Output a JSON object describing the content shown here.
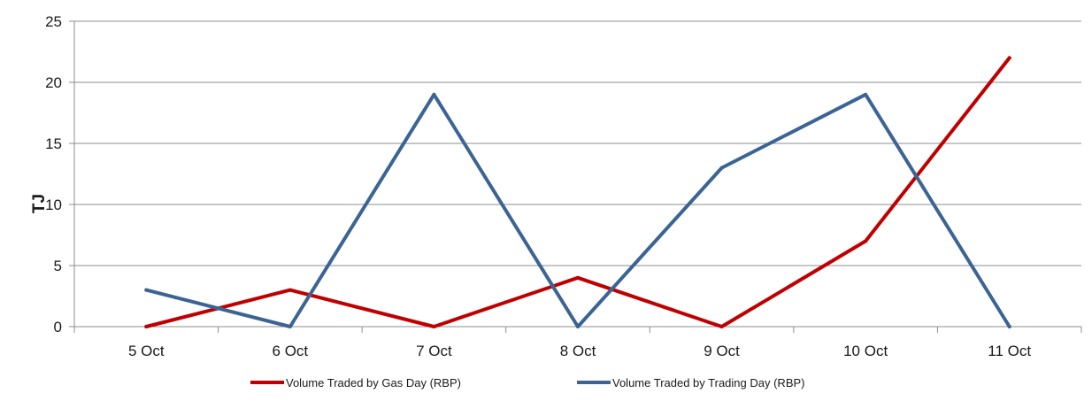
{
  "chart_data": {
    "type": "line",
    "title": "",
    "xlabel": "",
    "ylabel": "TJ",
    "ylim": [
      0,
      25
    ],
    "yticks": [
      0,
      5,
      10,
      15,
      20,
      25
    ],
    "grid": "horizontal",
    "legend_position": "bottom",
    "categories": [
      "5 Oct",
      "6 Oct",
      "7 Oct",
      "8 Oct",
      "9 Oct",
      "10 Oct",
      "11 Oct"
    ],
    "series": [
      {
        "name": "Volume Traded by Gas Day (RBP)",
        "color": "#c00000",
        "values": [
          0,
          3,
          0,
          4,
          0,
          7,
          22
        ]
      },
      {
        "name": "Volume Traded by Trading Day (RBP)",
        "color": "#3b6494",
        "values": [
          3,
          0,
          19,
          0,
          13,
          19,
          0
        ]
      }
    ]
  },
  "colors": {
    "gridline": "#8c8c8c",
    "axis": "#8c8c8c"
  }
}
